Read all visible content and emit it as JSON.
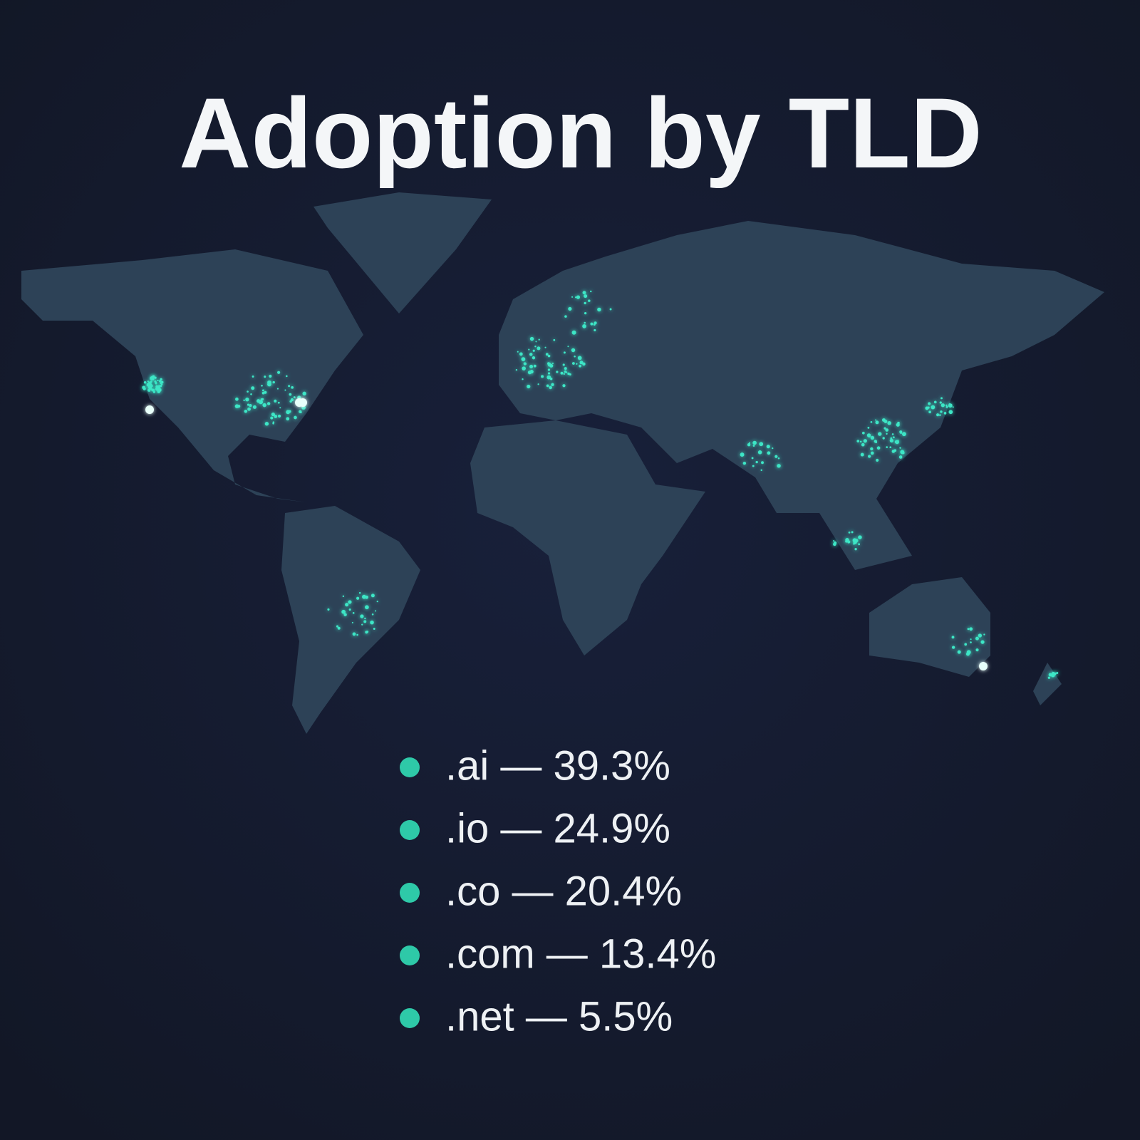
{
  "header": {
    "title": "Adoption by TLD"
  },
  "legend": {
    "items": [
      {
        "text": ".ai — 39.3%"
      },
      {
        "text": ".io — 24.9%"
      },
      {
        "text": ".co — 20.4%"
      },
      {
        "text": ".com — 13.4%"
      },
      {
        "text": ".net — 5.5%"
      }
    ]
  }
}
